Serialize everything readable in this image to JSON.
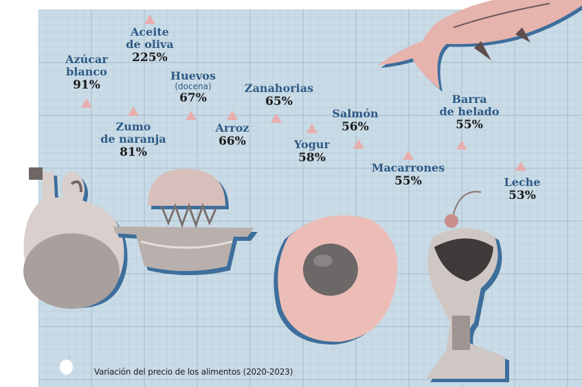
{
  "chart_data": {
    "type": "scatter",
    "caption": "Variación del precio de los alimentos (2020-2023)",
    "unit": "%",
    "items": [
      {
        "name_lines": [
          "Azúcar",
          "blanco"
        ],
        "sub": "",
        "value": 91,
        "label": "91%"
      },
      {
        "name_lines": [
          "Aceite",
          "de oliva"
        ],
        "sub": "",
        "value": 225,
        "label": "225%"
      },
      {
        "name_lines": [
          "Zumo",
          "de naranja"
        ],
        "sub": "",
        "value": 81,
        "label": "81%"
      },
      {
        "name_lines": [
          "Huevos"
        ],
        "sub": "(docena)",
        "value": 67,
        "label": "67%"
      },
      {
        "name_lines": [
          "Arroz"
        ],
        "sub": "",
        "value": 66,
        "label": "66%"
      },
      {
        "name_lines": [
          "Zanahorias"
        ],
        "sub": "",
        "value": 65,
        "label": "65%"
      },
      {
        "name_lines": [
          "Yogur"
        ],
        "sub": "",
        "value": 58,
        "label": "58%"
      },
      {
        "name_lines": [
          "Salmón"
        ],
        "sub": "",
        "value": 56,
        "label": "56%"
      },
      {
        "name_lines": [
          "Macarrones"
        ],
        "sub": "",
        "value": 55,
        "label": "55%"
      },
      {
        "name_lines": [
          "Barra",
          "de helado"
        ],
        "sub": "",
        "value": 55,
        "label": "55%"
      },
      {
        "name_lines": [
          "Leche"
        ],
        "sub": "",
        "value": 53,
        "label": "53%"
      }
    ]
  },
  "colors": {
    "paper": "#c9dbe6",
    "grid": "#9fb6c6",
    "label": "#2d5a86",
    "marker": "#e8aeae",
    "value": "#1a1a1a"
  },
  "illustrations": [
    "oil-cruet",
    "citrus-juicer",
    "fried-egg",
    "salmon",
    "ice-cream-sundae"
  ]
}
